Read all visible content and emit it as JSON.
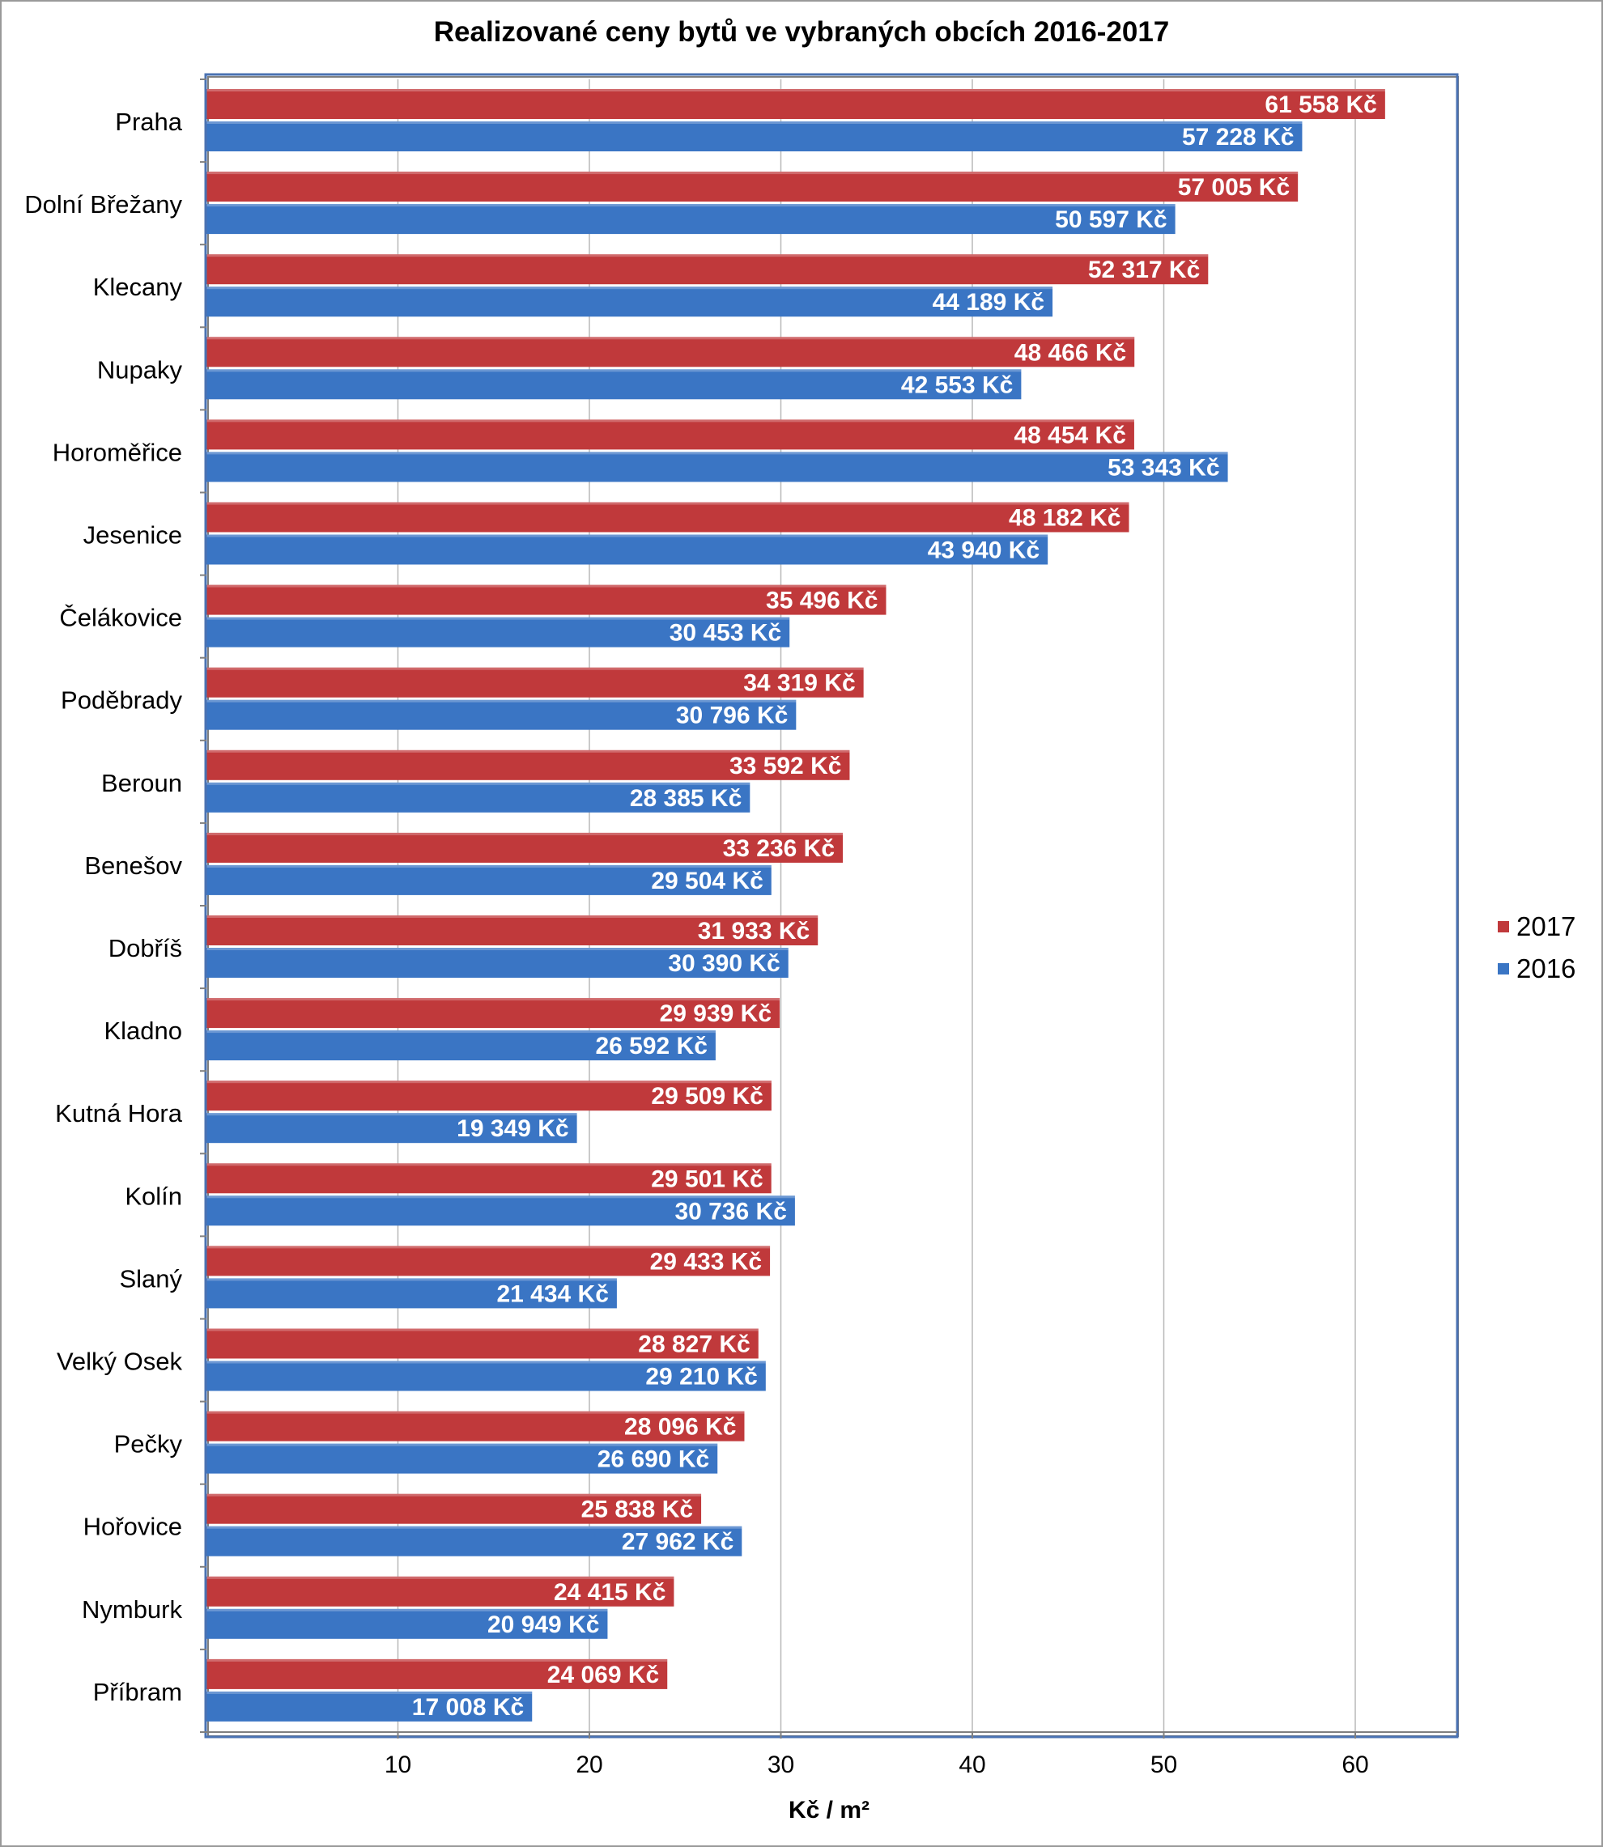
{
  "chart_data": {
    "type": "bar",
    "orientation": "horizontal",
    "title": "Realizované ceny bytů ve vybraných obcích 2016-2017",
    "xlabel": "Kč / m²",
    "ylabel": "",
    "xlim": [
      0,
      65
    ],
    "xticks": [
      10,
      20,
      30,
      40,
      50,
      60
    ],
    "grid": true,
    "legend_position": "right",
    "categories": [
      "Praha",
      "Dolní Břežany",
      "Klecany",
      "Nupaky",
      "Horoměřice",
      "Jesenice",
      "Čelákovice",
      "Poděbrady",
      "Beroun",
      "Benešov",
      "Dobříš",
      "Kladno",
      "Kutná Hora",
      "Kolín",
      "Slaný",
      "Velký Osek",
      "Pečky",
      "Hořovice",
      "Nymburk",
      "Příbram"
    ],
    "series": [
      {
        "name": "2017",
        "color": "#c0393b",
        "values": [
          61558,
          57005,
          52317,
          48466,
          48454,
          48182,
          35496,
          34319,
          33592,
          33236,
          31933,
          29939,
          29509,
          29501,
          29433,
          28827,
          28096,
          25838,
          24415,
          24069
        ],
        "labels": [
          "61 558 Kč",
          "57 005 Kč",
          "52 317 Kč",
          "48 466 Kč",
          "48 454 Kč",
          "48 182 Kč",
          "35 496 Kč",
          "34 319 Kč",
          "33 592 Kč",
          "33 236 Kč",
          "31 933 Kč",
          "29 939 Kč",
          "29 509 Kč",
          "29 501 Kč",
          "29 433 Kč",
          "28 827 Kč",
          "28 096 Kč",
          "25 838 Kč",
          "24 415 Kč",
          "24 069 Kč"
        ]
      },
      {
        "name": "2016",
        "color": "#3a75c4",
        "values": [
          57228,
          50597,
          44189,
          42553,
          53343,
          43940,
          30453,
          30796,
          28385,
          29504,
          30390,
          26592,
          19349,
          30736,
          21434,
          29210,
          26690,
          27962,
          20949,
          17008
        ],
        "labels": [
          "57 228 Kč",
          "50 597 Kč",
          "44 189 Kč",
          "42 553 Kč",
          "53 343 Kč",
          "43 940 Kč",
          "30 453 Kč",
          "30 796 Kč",
          "28 385 Kč",
          "29 504 Kč",
          "30 390 Kč",
          "26 592 Kč",
          "19 349 Kč",
          "30 736 Kč",
          "21 434 Kč",
          "29 210 Kč",
          "26 690 Kč",
          "27 962 Kč",
          "20 949 Kč",
          "17 008 Kč"
        ]
      }
    ]
  }
}
